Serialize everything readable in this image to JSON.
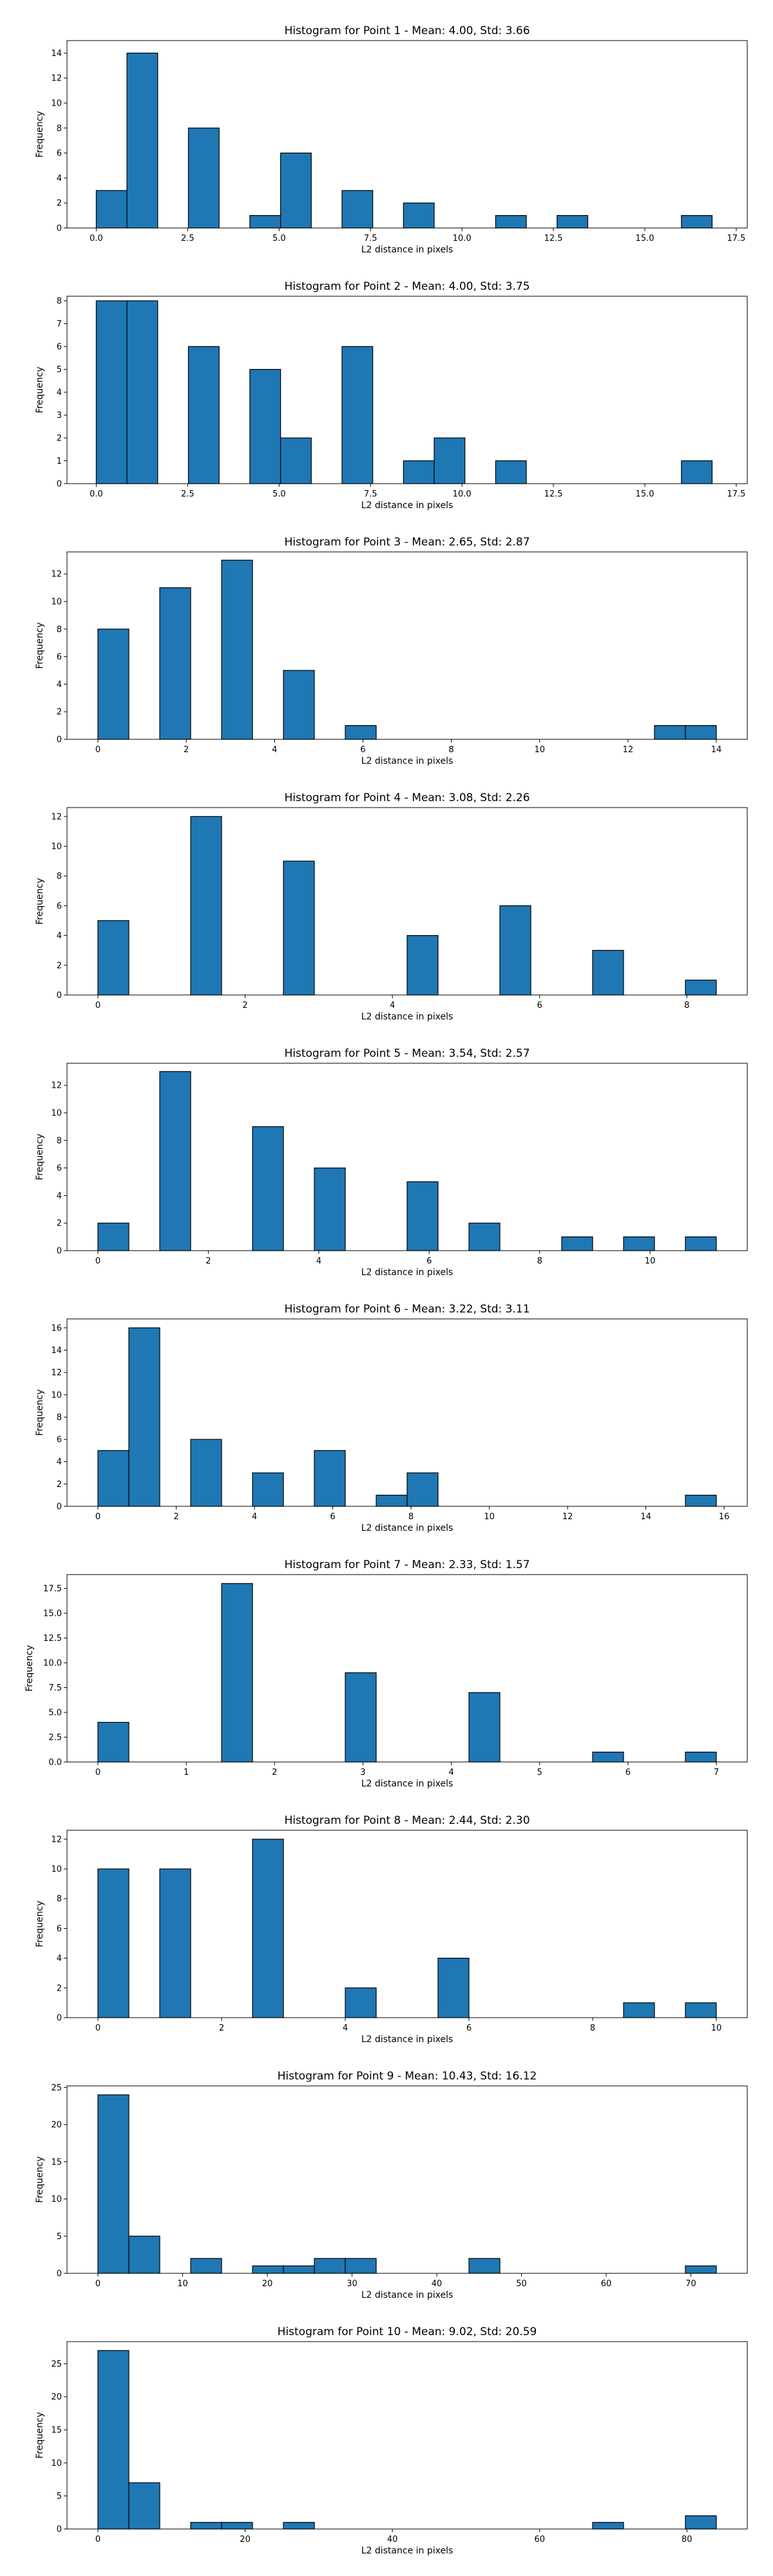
{
  "chart_data": [
    {
      "type": "bar",
      "title": "Histogram for Point 1 - Mean: 4.00, Std: 3.66",
      "xlabel": "L2 distance in pixels",
      "ylabel": "Frequency",
      "xlim": [
        -0.8,
        17.8
      ],
      "ylim": [
        0,
        15
      ],
      "xticks": [
        {
          "v": 0,
          "label": "0.0"
        },
        {
          "v": 2.5,
          "label": "2.5"
        },
        {
          "v": 5,
          "label": "5.0"
        },
        {
          "v": 7.5,
          "label": "7.5"
        },
        {
          "v": 10,
          "label": "10.0"
        },
        {
          "v": 12.5,
          "label": "12.5"
        },
        {
          "v": 15,
          "label": "15.0"
        },
        {
          "v": 17.5,
          "label": "17.5"
        }
      ],
      "yticks": [
        0,
        2,
        4,
        6,
        8,
        10,
        12,
        14
      ],
      "bins": [
        {
          "x0": 0,
          "x1": 0.84,
          "count": 3
        },
        {
          "x0": 0.84,
          "x1": 1.68,
          "count": 14
        },
        {
          "x0": 2.52,
          "x1": 3.36,
          "count": 8
        },
        {
          "x0": 4.2,
          "x1": 5.04,
          "count": 1
        },
        {
          "x0": 5.04,
          "x1": 5.88,
          "count": 6
        },
        {
          "x0": 6.72,
          "x1": 7.56,
          "count": 3
        },
        {
          "x0": 8.4,
          "x1": 9.24,
          "count": 2
        },
        {
          "x0": 10.92,
          "x1": 11.76,
          "count": 1
        },
        {
          "x0": 12.6,
          "x1": 13.44,
          "count": 1
        },
        {
          "x0": 16.0,
          "x1": 16.84,
          "count": 1
        }
      ]
    },
    {
      "type": "bar",
      "title": "Histogram for Point 2 - Mean: 4.00, Std: 3.75",
      "xlabel": "L2 distance in pixels",
      "ylabel": "Frequency",
      "xlim": [
        -0.8,
        17.8
      ],
      "ylim": [
        0,
        8.2
      ],
      "xticks": [
        {
          "v": 0,
          "label": "0.0"
        },
        {
          "v": 2.5,
          "label": "2.5"
        },
        {
          "v": 5,
          "label": "5.0"
        },
        {
          "v": 7.5,
          "label": "7.5"
        },
        {
          "v": 10,
          "label": "10.0"
        },
        {
          "v": 12.5,
          "label": "12.5"
        },
        {
          "v": 15,
          "label": "15.0"
        },
        {
          "v": 17.5,
          "label": "17.5"
        }
      ],
      "yticks": [
        0,
        1,
        2,
        3,
        4,
        5,
        6,
        7,
        8
      ],
      "bins": [
        {
          "x0": 0,
          "x1": 0.84,
          "count": 8
        },
        {
          "x0": 0.84,
          "x1": 1.68,
          "count": 8
        },
        {
          "x0": 2.52,
          "x1": 3.36,
          "count": 6
        },
        {
          "x0": 4.2,
          "x1": 5.04,
          "count": 5
        },
        {
          "x0": 5.04,
          "x1": 5.88,
          "count": 2
        },
        {
          "x0": 6.72,
          "x1": 7.56,
          "count": 6
        },
        {
          "x0": 8.4,
          "x1": 9.24,
          "count": 1
        },
        {
          "x0": 9.24,
          "x1": 10.08,
          "count": 2
        },
        {
          "x0": 10.92,
          "x1": 11.76,
          "count": 1
        },
        {
          "x0": 16.0,
          "x1": 16.84,
          "count": 1
        }
      ]
    },
    {
      "type": "bar",
      "title": "Histogram for Point 3 - Mean: 2.65, Std: 2.87",
      "xlabel": "L2 distance in pixels",
      "ylabel": "Frequency",
      "xlim": [
        -0.7,
        14.7
      ],
      "ylim": [
        0,
        13.6
      ],
      "xticks": [
        {
          "v": 0,
          "label": "0"
        },
        {
          "v": 2,
          "label": "2"
        },
        {
          "v": 4,
          "label": "4"
        },
        {
          "v": 6,
          "label": "6"
        },
        {
          "v": 8,
          "label": "8"
        },
        {
          "v": 10,
          "label": "10"
        },
        {
          "v": 12,
          "label": "12"
        },
        {
          "v": 14,
          "label": "14"
        }
      ],
      "yticks": [
        0,
        2,
        4,
        6,
        8,
        10,
        12
      ],
      "bins": [
        {
          "x0": 0,
          "x1": 0.7,
          "count": 8
        },
        {
          "x0": 1.4,
          "x1": 2.1,
          "count": 11
        },
        {
          "x0": 2.8,
          "x1": 3.5,
          "count": 13
        },
        {
          "x0": 4.2,
          "x1": 4.9,
          "count": 5
        },
        {
          "x0": 5.6,
          "x1": 6.3,
          "count": 1
        },
        {
          "x0": 12.6,
          "x1": 13.3,
          "count": 1
        },
        {
          "x0": 13.3,
          "x1": 14.0,
          "count": 1
        }
      ]
    },
    {
      "type": "bar",
      "title": "Histogram for Point 4 - Mean: 3.08, Std: 2.26",
      "xlabel": "L2 distance in pixels",
      "ylabel": "Frequency",
      "xlim": [
        -0.42,
        8.82
      ],
      "ylim": [
        0,
        12.6
      ],
      "xticks": [
        {
          "v": 0,
          "label": "0"
        },
        {
          "v": 2,
          "label": "2"
        },
        {
          "v": 4,
          "label": "4"
        },
        {
          "v": 6,
          "label": "6"
        },
        {
          "v": 8,
          "label": "8"
        }
      ],
      "yticks": [
        0,
        2,
        4,
        6,
        8,
        10,
        12
      ],
      "bins": [
        {
          "x0": 0,
          "x1": 0.42,
          "count": 5
        },
        {
          "x0": 1.26,
          "x1": 1.68,
          "count": 12
        },
        {
          "x0": 2.52,
          "x1": 2.94,
          "count": 9
        },
        {
          "x0": 4.2,
          "x1": 4.62,
          "count": 4
        },
        {
          "x0": 5.46,
          "x1": 5.88,
          "count": 6
        },
        {
          "x0": 6.72,
          "x1": 7.14,
          "count": 3
        },
        {
          "x0": 7.98,
          "x1": 8.4,
          "count": 1
        }
      ]
    },
    {
      "type": "bar",
      "title": "Histogram for Point 5 - Mean: 3.54, Std: 2.57",
      "xlabel": "L2 distance in pixels",
      "ylabel": "Frequency",
      "xlim": [
        -0.56,
        11.76
      ],
      "ylim": [
        0,
        13.6
      ],
      "xticks": [
        {
          "v": 0,
          "label": "0"
        },
        {
          "v": 2,
          "label": "2"
        },
        {
          "v": 4,
          "label": "4"
        },
        {
          "v": 6,
          "label": "6"
        },
        {
          "v": 8,
          "label": "8"
        },
        {
          "v": 10,
          "label": "10"
        }
      ],
      "yticks": [
        0,
        2,
        4,
        6,
        8,
        10,
        12
      ],
      "bins": [
        {
          "x0": 0,
          "x1": 0.56,
          "count": 2
        },
        {
          "x0": 1.12,
          "x1": 1.68,
          "count": 13
        },
        {
          "x0": 2.8,
          "x1": 3.36,
          "count": 9
        },
        {
          "x0": 3.92,
          "x1": 4.48,
          "count": 6
        },
        {
          "x0": 5.6,
          "x1": 6.16,
          "count": 5
        },
        {
          "x0": 6.72,
          "x1": 7.28,
          "count": 2
        },
        {
          "x0": 8.4,
          "x1": 8.96,
          "count": 1
        },
        {
          "x0": 9.52,
          "x1": 10.08,
          "count": 1
        },
        {
          "x0": 10.64,
          "x1": 11.2,
          "count": 1
        }
      ]
    },
    {
      "type": "bar",
      "title": "Histogram for Point 6 - Mean: 3.22, Std: 3.11",
      "xlabel": "L2 distance in pixels",
      "ylabel": "Frequency",
      "xlim": [
        -0.79,
        16.59
      ],
      "ylim": [
        0,
        16.8
      ],
      "xticks": [
        {
          "v": 0,
          "label": "0"
        },
        {
          "v": 2,
          "label": "2"
        },
        {
          "v": 4,
          "label": "4"
        },
        {
          "v": 6,
          "label": "6"
        },
        {
          "v": 8,
          "label": "8"
        },
        {
          "v": 10,
          "label": "10"
        },
        {
          "v": 12,
          "label": "12"
        },
        {
          "v": 14,
          "label": "14"
        },
        {
          "v": 16,
          "label": "16"
        }
      ],
      "yticks": [
        0,
        2,
        4,
        6,
        8,
        10,
        12,
        14,
        16
      ],
      "bins": [
        {
          "x0": 0,
          "x1": 0.79,
          "count": 5
        },
        {
          "x0": 0.79,
          "x1": 1.58,
          "count": 16
        },
        {
          "x0": 2.37,
          "x1": 3.16,
          "count": 6
        },
        {
          "x0": 3.95,
          "x1": 4.74,
          "count": 3
        },
        {
          "x0": 5.53,
          "x1": 6.32,
          "count": 5
        },
        {
          "x0": 7.11,
          "x1": 7.9,
          "count": 1
        },
        {
          "x0": 7.9,
          "x1": 8.69,
          "count": 3
        },
        {
          "x0": 15.01,
          "x1": 15.8,
          "count": 1
        }
      ]
    },
    {
      "type": "bar",
      "title": "Histogram for Point 7 - Mean: 2.33, Std: 1.57",
      "xlabel": "L2 distance in pixels",
      "ylabel": "Frequency",
      "xlim": [
        -0.35,
        7.35
      ],
      "ylim": [
        0,
        18.9
      ],
      "xticks": [
        {
          "v": 0,
          "label": "0"
        },
        {
          "v": 1,
          "label": "1"
        },
        {
          "v": 2,
          "label": "2"
        },
        {
          "v": 3,
          "label": "3"
        },
        {
          "v": 4,
          "label": "4"
        },
        {
          "v": 5,
          "label": "5"
        },
        {
          "v": 6,
          "label": "6"
        },
        {
          "v": 7,
          "label": "7"
        }
      ],
      "yticks": [
        {
          "v": 0,
          "label": "0.0"
        },
        {
          "v": 2.5,
          "label": "2.5"
        },
        {
          "v": 5,
          "label": "5.0"
        },
        {
          "v": 7.5,
          "label": "7.5"
        },
        {
          "v": 10,
          "label": "10.0"
        },
        {
          "v": 12.5,
          "label": "12.5"
        },
        {
          "v": 15,
          "label": "15.0"
        },
        {
          "v": 17.5,
          "label": "17.5"
        }
      ],
      "bins": [
        {
          "x0": 0,
          "x1": 0.35,
          "count": 4
        },
        {
          "x0": 1.4,
          "x1": 1.75,
          "count": 18
        },
        {
          "x0": 2.8,
          "x1": 3.15,
          "count": 9
        },
        {
          "x0": 4.2,
          "x1": 4.55,
          "count": 7
        },
        {
          "x0": 5.6,
          "x1": 5.95,
          "count": 1
        },
        {
          "x0": 6.65,
          "x1": 7.0,
          "count": 1
        }
      ]
    },
    {
      "type": "bar",
      "title": "Histogram for Point 8 - Mean: 2.44, Std: 2.30",
      "xlabel": "L2 distance in pixels",
      "ylabel": "Frequency",
      "xlim": [
        -0.5,
        10.5
      ],
      "ylim": [
        0,
        12.6
      ],
      "xticks": [
        {
          "v": 0,
          "label": "0"
        },
        {
          "v": 2,
          "label": "2"
        },
        {
          "v": 4,
          "label": "4"
        },
        {
          "v": 6,
          "label": "6"
        },
        {
          "v": 8,
          "label": "8"
        },
        {
          "v": 10,
          "label": "10"
        }
      ],
      "yticks": [
        0,
        2,
        4,
        6,
        8,
        10,
        12
      ],
      "bins": [
        {
          "x0": 0,
          "x1": 0.5,
          "count": 10
        },
        {
          "x0": 1.0,
          "x1": 1.5,
          "count": 10
        },
        {
          "x0": 2.5,
          "x1": 3.0,
          "count": 12
        },
        {
          "x0": 4.0,
          "x1": 4.5,
          "count": 2
        },
        {
          "x0": 5.5,
          "x1": 6.0,
          "count": 4
        },
        {
          "x0": 8.5,
          "x1": 9.0,
          "count": 1
        },
        {
          "x0": 9.5,
          "x1": 10.0,
          "count": 1
        }
      ]
    },
    {
      "type": "bar",
      "title": "Histogram for Point 9 - Mean: 10.43, Std: 16.12",
      "xlabel": "L2 distance in pixels",
      "ylabel": "Frequency",
      "xlim": [
        -3.65,
        76.65
      ],
      "ylim": [
        0,
        25.2
      ],
      "xticks": [
        {
          "v": 0,
          "label": "0"
        },
        {
          "v": 10,
          "label": "10"
        },
        {
          "v": 20,
          "label": "20"
        },
        {
          "v": 30,
          "label": "30"
        },
        {
          "v": 40,
          "label": "40"
        },
        {
          "v": 50,
          "label": "50"
        },
        {
          "v": 60,
          "label": "60"
        },
        {
          "v": 70,
          "label": "70"
        }
      ],
      "yticks": [
        0,
        5,
        10,
        15,
        20,
        25
      ],
      "bins": [
        {
          "x0": 0,
          "x1": 3.65,
          "count": 24
        },
        {
          "x0": 3.65,
          "x1": 7.3,
          "count": 5
        },
        {
          "x0": 10.95,
          "x1": 14.6,
          "count": 2
        },
        {
          "x0": 18.25,
          "x1": 21.9,
          "count": 1
        },
        {
          "x0": 21.9,
          "x1": 25.55,
          "count": 1
        },
        {
          "x0": 25.55,
          "x1": 29.2,
          "count": 2
        },
        {
          "x0": 29.2,
          "x1": 32.85,
          "count": 2
        },
        {
          "x0": 43.8,
          "x1": 47.45,
          "count": 2
        },
        {
          "x0": 69.35,
          "x1": 73.0,
          "count": 1
        }
      ]
    },
    {
      "type": "bar",
      "title": "Histogram for Point 10 - Mean: 9.02, Std: 20.59",
      "xlabel": "L2 distance in pixels",
      "ylabel": "Frequency",
      "xlim": [
        -4.2,
        88.2
      ],
      "ylim": [
        0,
        28.35
      ],
      "xticks": [
        {
          "v": 0,
          "label": "0"
        },
        {
          "v": 20,
          "label": "20"
        },
        {
          "v": 40,
          "label": "40"
        },
        {
          "v": 60,
          "label": "60"
        },
        {
          "v": 80,
          "label": "80"
        }
      ],
      "yticks": [
        0,
        5,
        10,
        15,
        20,
        25
      ],
      "bins": [
        {
          "x0": 0,
          "x1": 4.2,
          "count": 27
        },
        {
          "x0": 4.2,
          "x1": 8.4,
          "count": 7
        },
        {
          "x0": 12.6,
          "x1": 16.8,
          "count": 1
        },
        {
          "x0": 16.8,
          "x1": 21.0,
          "count": 1
        },
        {
          "x0": 25.2,
          "x1": 29.4,
          "count": 1
        },
        {
          "x0": 67.2,
          "x1": 71.4,
          "count": 1
        },
        {
          "x0": 79.8,
          "x1": 84.0,
          "count": 2
        }
      ]
    }
  ],
  "style": {
    "bar_color": "#1f77b4",
    "edge_color": "#000000",
    "axis_color": "#000000",
    "background": "#ffffff"
  }
}
